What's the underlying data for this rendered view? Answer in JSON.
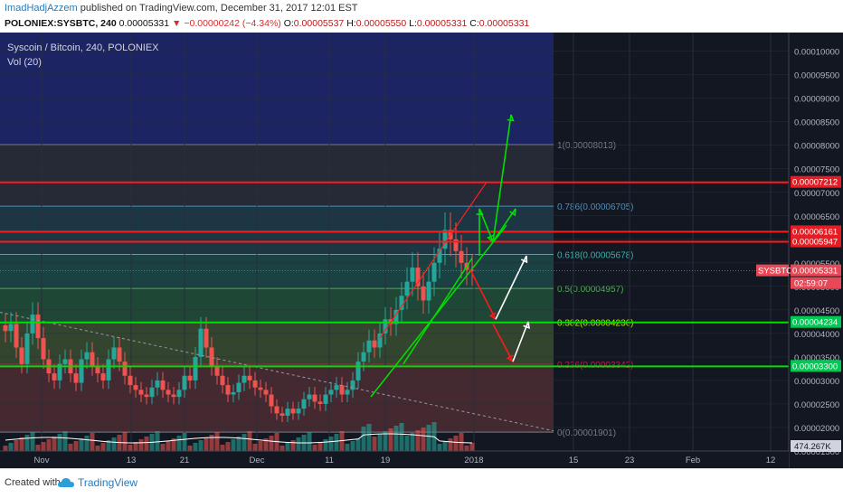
{
  "header": {
    "author": "ImadHadjAzzem",
    "published": "published on TradingView.com, December 31, 2017 12:01 EST",
    "symbol": "POLONIEX:SYSBTC, 240",
    "last": "0.00005331",
    "change": "−0.00000242 (−4.34%)",
    "o_label": "O:",
    "o": "0.00005537",
    "h_label": "H:",
    "h": "0.00005550",
    "l_label": "L:",
    "l": "0.00005331",
    "c_label": "C:",
    "c": "0.00005331"
  },
  "chart_title": "Syscoin / Bitcoin, 240, POLONIEX",
  "volume_label": "Vol (20)",
  "footer": {
    "created_with": "Created with",
    "brand": "TradingView"
  },
  "colors": {
    "background": "#131722",
    "up": "#26a69a",
    "down": "#ef5350",
    "resistance": "#ff1a1a",
    "support": "#00e000",
    "axis_text": "#b2b5be"
  },
  "chart_data": {
    "type": "candlestick",
    "y_range": [
      1.5e-05,
      0.000103
    ],
    "y_ticks": [
      "0.00010000",
      "0.00009500",
      "0.00009000",
      "0.00008500",
      "0.00008000",
      "0.00007500",
      "0.00007000",
      "0.00006500",
      "0.00006000",
      "0.00005500",
      "0.00005000",
      "0.00004500",
      "0.00004000",
      "0.00003500",
      "0.00003000",
      "0.00002500",
      "0.00002000",
      "0.00001500"
    ],
    "x_labels": [
      "Nov",
      "13",
      "21",
      "Dec",
      "11",
      "19",
      "2018",
      "15",
      "23",
      "Feb",
      "12"
    ],
    "fibonacci": [
      {
        "label": "1(0.00008013)",
        "value": 8.013e-05
      },
      {
        "label": "0.786(0.00006705)",
        "value": 6.705e-05
      },
      {
        "label": "0.618(0.00005678)",
        "value": 5.678e-05
      },
      {
        "label": "0.5(0.00004957)",
        "value": 4.957e-05
      },
      {
        "label": "0.382(0.00004236)",
        "value": 4.236e-05
      },
      {
        "label": "0.236(0.00003342)",
        "value": 3.342e-05
      },
      {
        "label": "0(0.00001901)",
        "value": 1.901e-05
      }
    ],
    "resistance_levels": [
      "0.00007212",
      "0.00006161",
      "0.00005947"
    ],
    "support_levels": [
      "0.00004234",
      "0.00003300"
    ],
    "price_tag": {
      "symbol": "SYSBTC",
      "price": "0.00005331",
      "countdown": "02:59:07"
    },
    "current_volume": "474.267K",
    "close_path": [
      4.05e-05,
      4.2e-05,
      3.7e-05,
      3.35e-05,
      4e-05,
      4.4e-05,
      3.9e-05,
      3.45e-05,
      3.15e-05,
      3e-05,
      3.35e-05,
      3.45e-05,
      3.15e-05,
      2.95e-05,
      3.45e-05,
      3.6e-05,
      3.3e-05,
      3.15e-05,
      3e-05,
      3.45e-05,
      3.7e-05,
      3.4e-05,
      3.1e-05,
      2.9e-05,
      2.8e-05,
      2.7e-05,
      2.65e-05,
      2.85e-05,
      3e-05,
      2.8e-05,
      2.7e-05,
      2.65e-05,
      2.8e-05,
      3.1e-05,
      3e-05,
      3.5e-05,
      4.1e-05,
      3.7e-05,
      3.3e-05,
      3.1e-05,
      2.9e-05,
      2.7e-05,
      2.75e-05,
      2.95e-05,
      3.1e-05,
      3e-05,
      2.85e-05,
      2.8e-05,
      2.7e-05,
      2.45e-05,
      2.3e-05,
      2.25e-05,
      2.4e-05,
      2.3e-05,
      2.4e-05,
      2.6e-05,
      2.7e-05,
      2.55e-05,
      2.5e-05,
      2.7e-05,
      2.8e-05,
      2.9e-05,
      2.7e-05,
      2.8e-05,
      3e-05,
      3.4e-05,
      3.6e-05,
      3.85e-05,
      3.7e-05,
      4e-05,
      4.3e-05,
      4.2e-05,
      4.5e-05,
      4.8e-05,
      5.1e-05,
      5.4e-05,
      5e-05,
      4.7e-05,
      5.1e-05,
      5.5e-05,
      5.8e-05,
      6.2e-05,
      6e-05,
      5.75e-05,
      5.5e-05,
      5.35e-05,
      5.331e-05
    ]
  }
}
